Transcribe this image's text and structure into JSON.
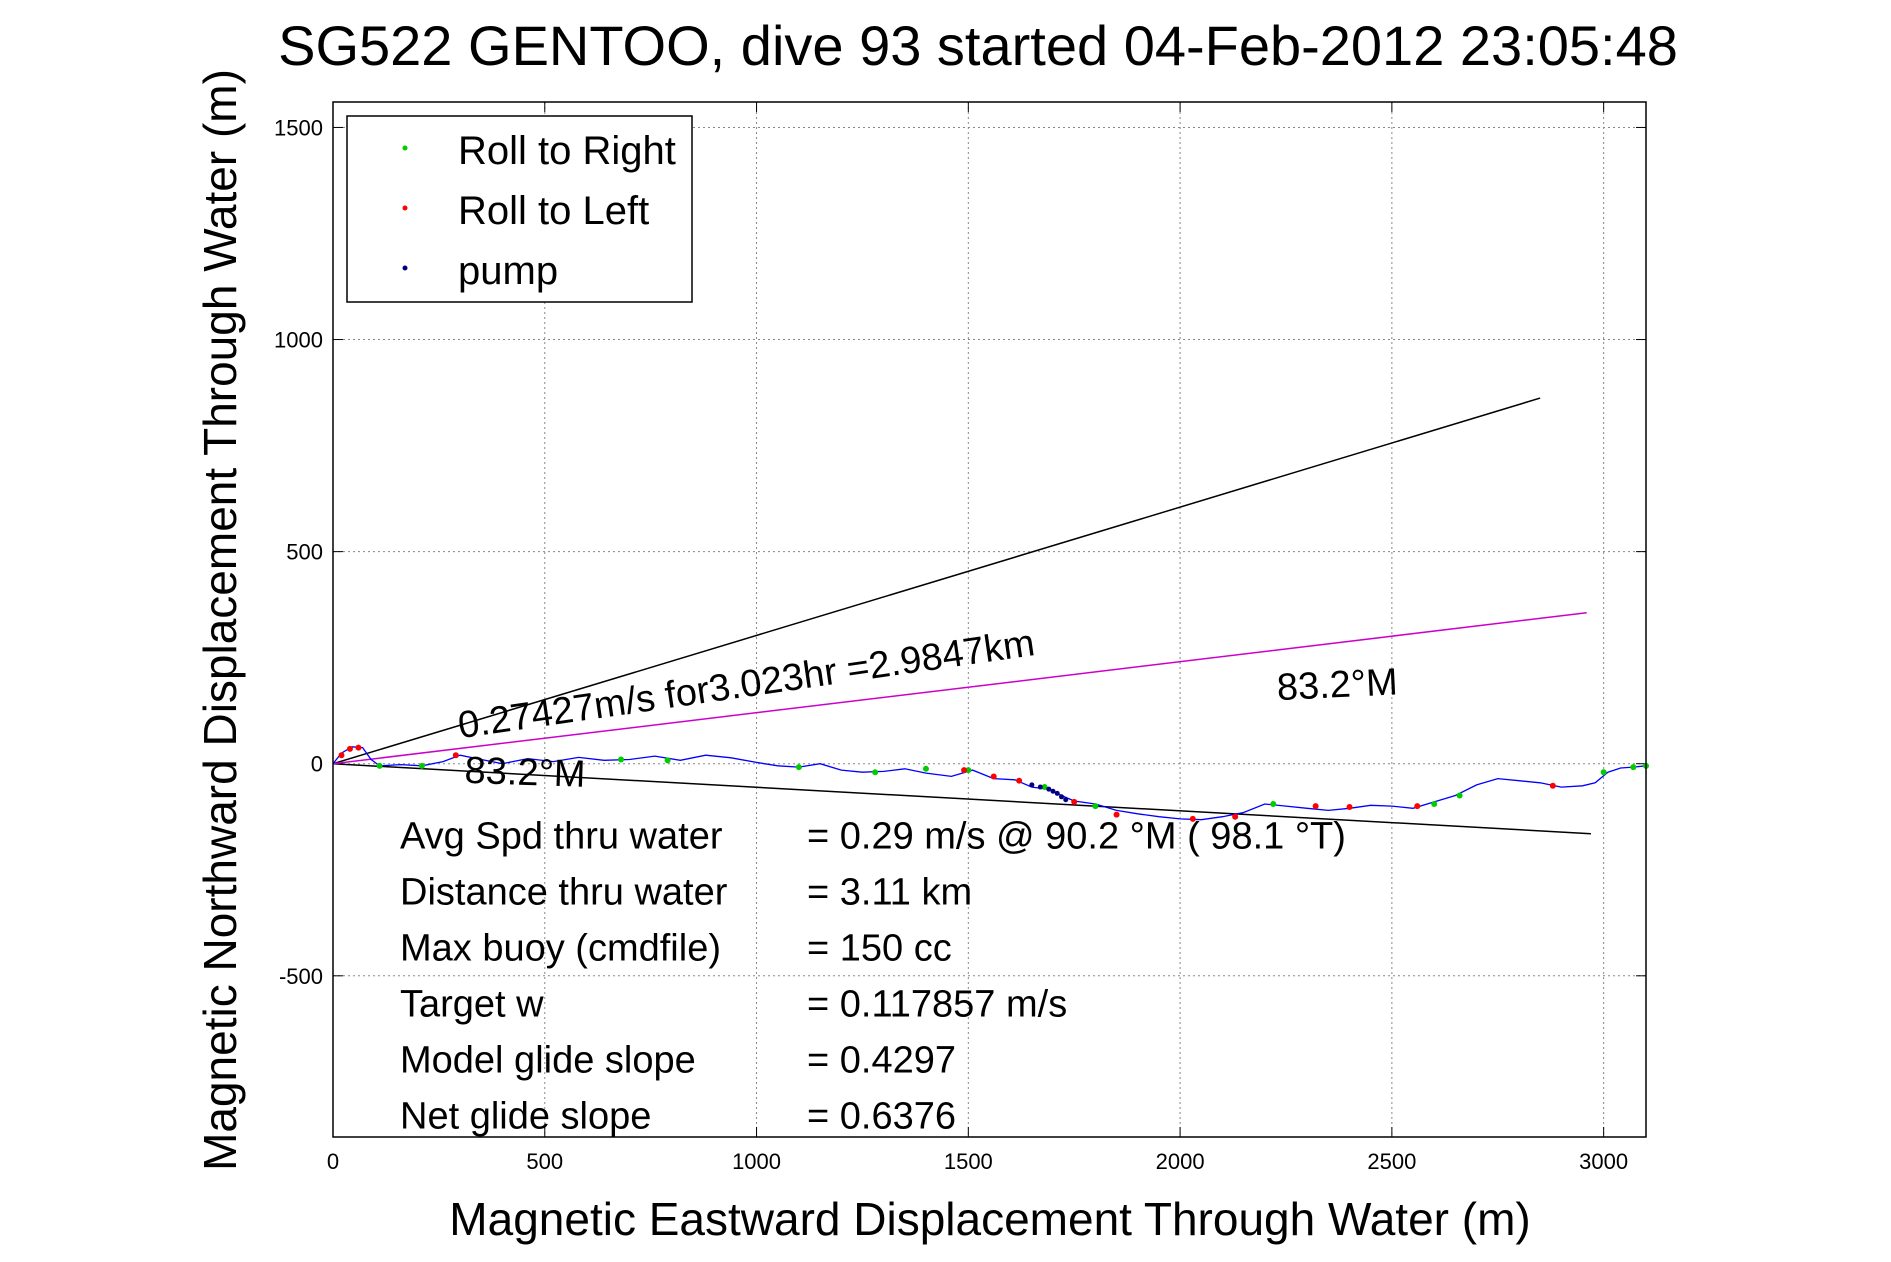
{
  "chart_data": {
    "type": "line",
    "title": "SG522 GENTOO, dive 93 started 04-Feb-2012 23:05:48",
    "xlabel": "Magnetic Eastward Displacement Through Water (m)",
    "ylabel": "Magnetic Northward Displacement Through Water (m)",
    "xlim": [
      0,
      3100
    ],
    "ylim": [
      -880,
      1560
    ],
    "xticks": [
      0,
      500,
      1000,
      1500,
      2000,
      2500,
      3000
    ],
    "yticks": [
      -500,
      0,
      500,
      1000,
      1500
    ],
    "xtick_labels": [
      "0",
      "500",
      "1000",
      "1500",
      "2000",
      "2500",
      "3000"
    ],
    "ytick_labels": [
      "-500",
      "0",
      "500",
      "1000",
      "1500"
    ],
    "grid": true,
    "legend_position": "top-left",
    "legend": [
      {
        "label": "Roll to Right",
        "color": "#00cc00"
      },
      {
        "label": "Roll to Left",
        "color": "#ff0000"
      },
      {
        "label": "pump",
        "color": "#000080"
      }
    ],
    "lines": [
      {
        "name": "upper bound",
        "color": "#000000",
        "x": [
          0,
          2850
        ],
        "y": [
          0,
          862
        ]
      },
      {
        "name": "lower bound",
        "color": "#000000",
        "x": [
          0,
          2970
        ],
        "y": [
          0,
          -165
        ]
      },
      {
        "name": "heading",
        "color": "#cc00cc",
        "x": [
          0,
          2960
        ],
        "y": [
          0,
          356
        ]
      }
    ],
    "track": {
      "color": "#0000ff",
      "x": [
        0,
        20,
        45,
        70,
        90,
        110,
        160,
        210,
        260,
        300,
        350,
        400,
        460,
        520,
        580,
        640,
        700,
        760,
        820,
        880,
        940,
        1000,
        1050,
        1100,
        1150,
        1200,
        1250,
        1300,
        1350,
        1400,
        1460,
        1510,
        1560,
        1610,
        1650,
        1690,
        1720,
        1750,
        1800,
        1850,
        1900,
        1950,
        2000,
        2050,
        2100,
        2150,
        2200,
        2250,
        2300,
        2350,
        2400,
        2450,
        2500,
        2550,
        2600,
        2650,
        2700,
        2750,
        2800,
        2850,
        2900,
        2950,
        2980,
        3010,
        3040,
        3070,
        3100
      ],
      "y": [
        0,
        25,
        40,
        38,
        10,
        -5,
        -2,
        -5,
        5,
        20,
        10,
        0,
        12,
        5,
        15,
        8,
        10,
        18,
        8,
        20,
        14,
        3,
        -5,
        -8,
        0,
        -15,
        -20,
        -18,
        -12,
        -22,
        -30,
        -15,
        -35,
        -38,
        -55,
        -60,
        -75,
        -88,
        -95,
        -110,
        -118,
        -125,
        -130,
        -132,
        -125,
        -115,
        -95,
        -100,
        -105,
        -110,
        -105,
        -98,
        -100,
        -105,
        -90,
        -75,
        -50,
        -35,
        -40,
        -45,
        -55,
        -52,
        -45,
        -20,
        -10,
        -8,
        -5
      ]
    },
    "roll_right_points": {
      "color": "#00cc00",
      "x": [
        110,
        210,
        680,
        790,
        1100,
        1280,
        1400,
        1500,
        1680,
        1800,
        2220,
        2600,
        2660,
        3000,
        3070,
        3100
      ],
      "y": [
        -5,
        -5,
        10,
        8,
        -8,
        -20,
        -12,
        -15,
        -55,
        -100,
        -95,
        -95,
        -75,
        -20,
        -8,
        -5
      ]
    },
    "roll_left_points": {
      "color": "#ff0000",
      "x": [
        20,
        40,
        60,
        290,
        1490,
        1560,
        1620,
        1750,
        1850,
        2030,
        2130,
        2320,
        2400,
        2560,
        2880
      ],
      "y": [
        20,
        35,
        38,
        20,
        -15,
        -30,
        -40,
        -90,
        -120,
        -130,
        -125,
        -100,
        -102,
        -100,
        -52
      ]
    },
    "pump_points": {
      "color": "#000080",
      "x": [
        1650,
        1670,
        1690,
        1700,
        1710,
        1720,
        1730
      ],
      "y": [
        -50,
        -55,
        -60,
        -65,
        -70,
        -78,
        -85
      ]
    },
    "annotations": {
      "speed_text": "0.27427m/s for3.023hr =2.9847km",
      "heading_upper": "83.2°M",
      "heading_lower": "83.2°M"
    },
    "stats": [
      {
        "label": "Avg Spd thru water",
        "value": "=  0.29 m/s @  90.2 °M ( 98.1 °T)"
      },
      {
        "label": "Distance thru water",
        "value": "=  3.11 km"
      },
      {
        "label": "Max buoy (cmdfile)",
        "value": "= 150 cc"
      },
      {
        "label": "Target w",
        "value": "= 0.117857 m/s"
      },
      {
        "label": "Model glide slope",
        "value": "= 0.4297"
      },
      {
        "label": "Net glide slope",
        "value": "= 0.6376"
      }
    ]
  }
}
